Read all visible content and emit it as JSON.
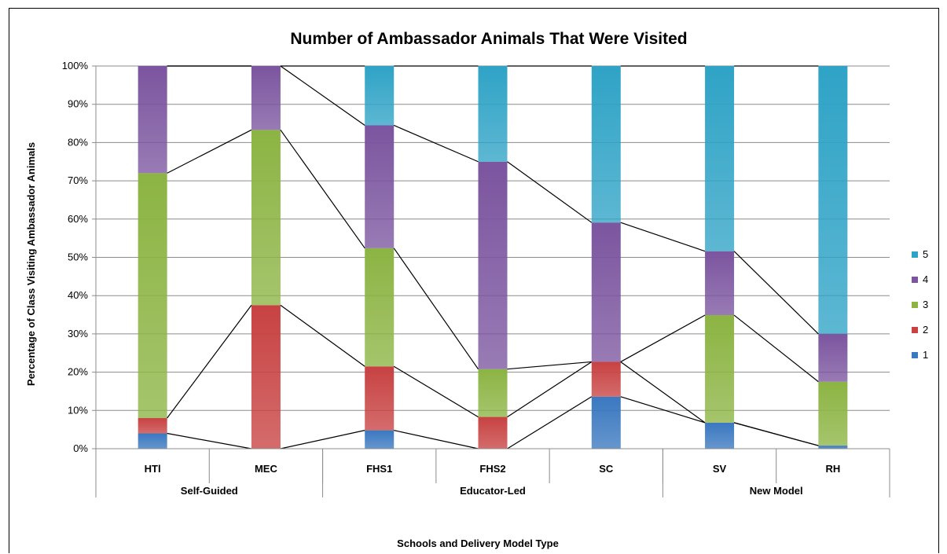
{
  "chart_data": {
    "type": "bar",
    "stacked": true,
    "percent_stacked": true,
    "title": "Number of Ambassador Animals That Were Visited",
    "xlabel": "Schools and Delivery Model Type",
    "ylabel": "Percentage of Class Visiting Ambassador Animals",
    "ylim": [
      0,
      100
    ],
    "y_ticks": [
      "0%",
      "10%",
      "20%",
      "30%",
      "40%",
      "50%",
      "60%",
      "70%",
      "80%",
      "90%",
      "100%"
    ],
    "categories": [
      "HTl",
      "MEC",
      "FHS1",
      "FHS2",
      "SC",
      "SV",
      "RH"
    ],
    "groups": [
      {
        "label": "Self-Guided",
        "categories": [
          "HTl",
          "MEC"
        ]
      },
      {
        "label": "Educator-Led",
        "categories": [
          "FHS1",
          "FHS2",
          "SC"
        ]
      },
      {
        "label": "New Model",
        "categories": [
          "SV",
          "RH"
        ]
      }
    ],
    "series": [
      {
        "name": "1",
        "color": "#3A78C0",
        "values": [
          4,
          0,
          4.8,
          0,
          13.6,
          6.8,
          0.8
        ]
      },
      {
        "name": "2",
        "color": "#C84242",
        "values": [
          4,
          37.5,
          16.7,
          8.3,
          9.1,
          0,
          0
        ]
      },
      {
        "name": "3",
        "color": "#8CB443",
        "values": [
          64,
          45.8,
          30.9,
          12.5,
          0,
          28.1,
          16.7
        ]
      },
      {
        "name": "4",
        "color": "#7B559F",
        "values": [
          28,
          16.7,
          32.1,
          54.2,
          36.4,
          16.7,
          12.5
        ]
      },
      {
        "name": "5",
        "color": "#2FA3C6",
        "values": [
          0,
          0,
          15.5,
          25,
          40.9,
          48.4,
          70
        ]
      }
    ],
    "series_lines": true,
    "grid": true,
    "legend_position": "right"
  }
}
